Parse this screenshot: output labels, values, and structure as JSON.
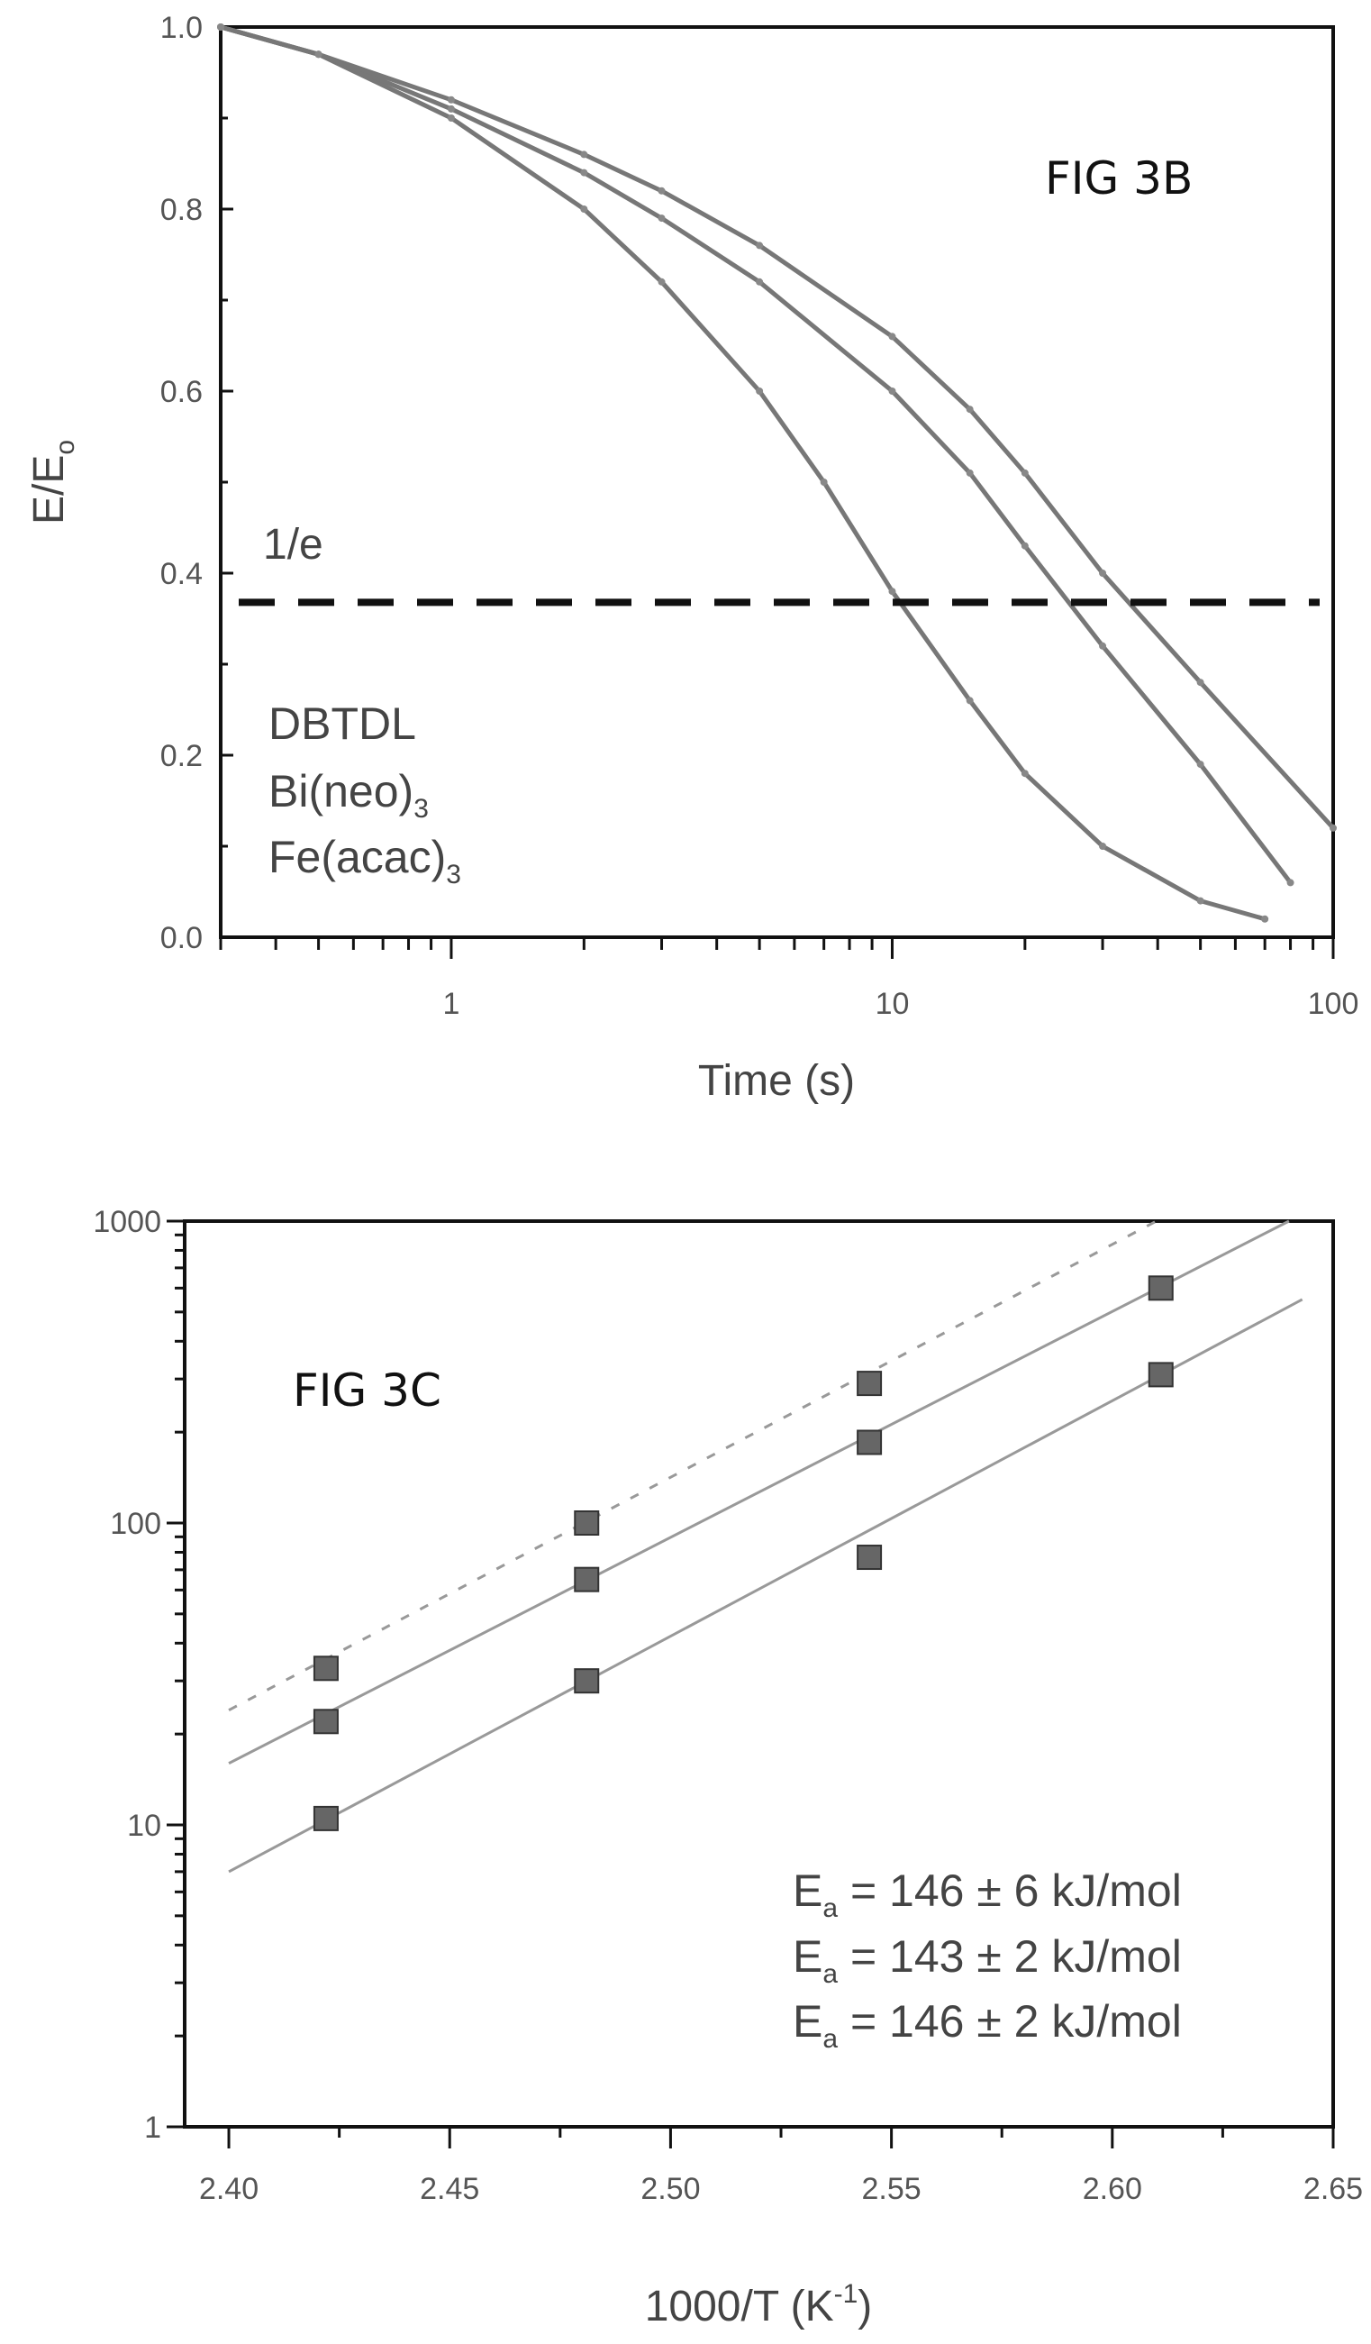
{
  "figures": [
    {
      "label": "FIG 3B",
      "annotation_1e": "1/e",
      "legend": [
        {
          "text": "DBTDL",
          "sub": ""
        },
        {
          "text": "Bi(neo)",
          "sub": "3"
        },
        {
          "text": "Fe(acac)",
          "sub": "3"
        }
      ]
    },
    {
      "label": "FIG 3C",
      "ea_labels": [
        {
          "main": "E",
          "sub": "a",
          "rest": " = 146 ± 6 kJ/mol"
        },
        {
          "main": "E",
          "sub": "a",
          "rest": " = 143 ± 2 kJ/mol"
        },
        {
          "main": "E",
          "sub": "a",
          "rest": " = 146 ± 2 kJ/mol"
        }
      ]
    }
  ],
  "chart_data": [
    {
      "type": "line",
      "title": "",
      "xlabel": "Time (s)",
      "ylabel": "E/Eo",
      "ylabel_parts": {
        "main": "E/E",
        "sub": "o"
      },
      "xscale": "log",
      "xlim": [
        0.3,
        100
      ],
      "ylim": [
        0,
        1.0
      ],
      "xticks": [
        1,
        10,
        100
      ],
      "xtick_labels": [
        "1",
        "10",
        "100"
      ],
      "yticks": [
        0.0,
        0.2,
        0.4,
        0.6,
        0.8,
        1.0
      ],
      "ytick_labels": [
        "0.0",
        "0.2",
        "0.4",
        "0.6",
        "0.8",
        "1.0"
      ],
      "reference_line": {
        "y": 0.368,
        "label": "1/e"
      },
      "series": [
        {
          "x": [
            0.3,
            0.5,
            1,
            2,
            3,
            5,
            7,
            10,
            15,
            20,
            30,
            50,
            70
          ],
          "y": [
            1.0,
            0.97,
            0.9,
            0.8,
            0.72,
            0.6,
            0.5,
            0.38,
            0.26,
            0.18,
            0.1,
            0.04,
            0.02
          ]
        },
        {
          "x": [
            0.3,
            0.5,
            1,
            2,
            3,
            5,
            10,
            15,
            20,
            30,
            50,
            80
          ],
          "y": [
            1.0,
            0.97,
            0.91,
            0.84,
            0.79,
            0.72,
            0.6,
            0.51,
            0.43,
            0.32,
            0.19,
            0.06
          ]
        },
        {
          "x": [
            0.3,
            0.5,
            1,
            2,
            3,
            5,
            10,
            15,
            20,
            30,
            50,
            100
          ],
          "y": [
            1.0,
            0.97,
            0.92,
            0.86,
            0.82,
            0.76,
            0.66,
            0.58,
            0.51,
            0.4,
            0.28,
            0.12
          ]
        }
      ]
    },
    {
      "type": "scatter",
      "title": "",
      "xlabel": "1000/T (K-1)",
      "xlabel_parts": {
        "main": "1000/T (K",
        "sup": "-1",
        "end": ")"
      },
      "ylabel": "",
      "yscale": "log",
      "xlim": [
        2.39,
        2.65
      ],
      "ylim": [
        1,
        1000
      ],
      "xticks": [
        2.4,
        2.45,
        2.5,
        2.55,
        2.6,
        2.65
      ],
      "xtick_labels": [
        "2.40",
        "2.45",
        "2.50",
        "2.55",
        "2.60",
        "2.65"
      ],
      "yticks": [
        1,
        10,
        100,
        1000
      ],
      "ytick_labels": [
        "1",
        "10",
        "100",
        "1000"
      ],
      "series": [
        {
          "x": [
            2.422,
            2.481,
            2.545
          ],
          "y": [
            33,
            100,
            290
          ],
          "fit": {
            "x": [
              2.4,
              2.61
            ],
            "y": [
              24,
              1000
            ],
            "style": "dashed"
          }
        },
        {
          "x": [
            2.422,
            2.481,
            2.545,
            2.611
          ],
          "y": [
            22,
            65,
            185,
            600
          ],
          "fit": {
            "x": [
              2.4,
              2.64
            ],
            "y": [
              16,
              1000
            ],
            "style": "solid"
          }
        },
        {
          "x": [
            2.422,
            2.481,
            2.545,
            2.611
          ],
          "y": [
            10.5,
            30,
            77,
            310
          ],
          "fit": {
            "x": [
              2.4,
              2.643
            ],
            "y": [
              7,
              550
            ],
            "style": "solid"
          }
        }
      ]
    }
  ]
}
